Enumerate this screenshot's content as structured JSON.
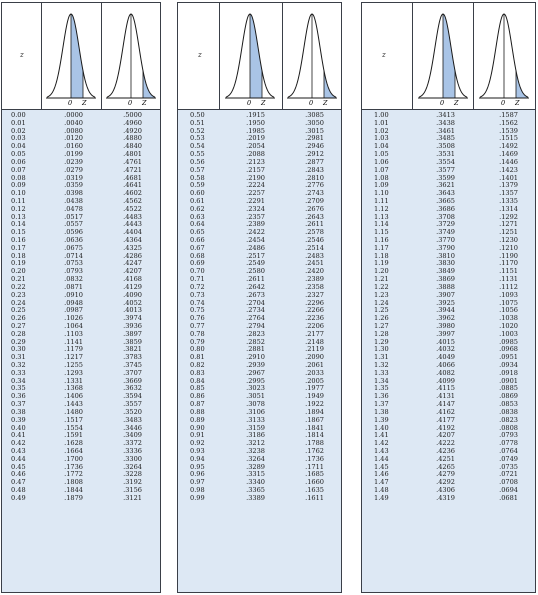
{
  "axis_label": "z",
  "curve_labels": {
    "mean": "0",
    "z": "Z"
  },
  "colors": {
    "shade": "#a9c4e6",
    "rows_background": "#dde8f4",
    "rule": "#3a3f48"
  },
  "panels": [
    {
      "z": [
        "0.00",
        "0.01",
        "0.02",
        "0.03",
        "0.04",
        "0.05",
        "0.06",
        "0.07",
        "0.08",
        "0.09",
        "0.10",
        "0.11",
        "0.12",
        "0.13",
        "0.14",
        "0.15",
        "0.16",
        "0.17",
        "0.18",
        "0.19",
        "0.20",
        "0.21",
        "0.22",
        "0.23",
        "0.24",
        "0.25",
        "0.26",
        "0.27",
        "0.28",
        "0.29",
        "0.30",
        "0.31",
        "0.32",
        "0.33",
        "0.34",
        "0.35",
        "0.36",
        "0.37",
        "0.38",
        "0.39",
        "0.40",
        "0.41",
        "0.42",
        "0.43",
        "0.44",
        "0.45",
        "0.46",
        "0.47",
        "0.48",
        "0.49"
      ],
      "area_0_to_z": [
        ".0000",
        ".0040",
        ".0080",
        ".0120",
        ".0160",
        ".0199",
        ".0239",
        ".0279",
        ".0319",
        ".0359",
        ".0398",
        ".0438",
        ".0478",
        ".0517",
        ".0557",
        ".0596",
        ".0636",
        ".0675",
        ".0714",
        ".0753",
        ".0793",
        ".0832",
        ".0871",
        ".0910",
        ".0948",
        ".0987",
        ".1026",
        ".1064",
        ".1103",
        ".1141",
        ".1179",
        ".1217",
        ".1255",
        ".1293",
        ".1331",
        ".1368",
        ".1406",
        ".1443",
        ".1480",
        ".1517",
        ".1554",
        ".1591",
        ".1628",
        ".1664",
        ".1700",
        ".1736",
        ".1772",
        ".1808",
        ".1844",
        ".1879"
      ],
      "area_beyond_z": [
        ".5000",
        ".4960",
        ".4920",
        ".4880",
        ".4840",
        ".4801",
        ".4761",
        ".4721",
        ".4681",
        ".4641",
        ".4602",
        ".4562",
        ".4522",
        ".4483",
        ".4443",
        ".4404",
        ".4364",
        ".4325",
        ".4286",
        ".4247",
        ".4207",
        ".4168",
        ".4129",
        ".4090",
        ".4052",
        ".4013",
        ".3974",
        ".3936",
        ".3897",
        ".3859",
        ".3821",
        ".3783",
        ".3745",
        ".3707",
        ".3669",
        ".3632",
        ".3594",
        ".3557",
        ".3520",
        ".3483",
        ".3446",
        ".3409",
        ".3372",
        ".3336",
        ".3300",
        ".3264",
        ".3228",
        ".3192",
        ".3156",
        ".3121"
      ]
    },
    {
      "z": [
        "0.50",
        "0.51",
        "0.52",
        "0.53",
        "0.54",
        "0.55",
        "0.56",
        "0.57",
        "0.58",
        "0.59",
        "0.60",
        "0.61",
        "0.62",
        "0.63",
        "0.64",
        "0.65",
        "0.66",
        "0.67",
        "0.68",
        "0.69",
        "0.70",
        "0.71",
        "0.72",
        "0.73",
        "0.74",
        "0.75",
        "0.76",
        "0.77",
        "0.78",
        "0.79",
        "0.80",
        "0.81",
        "0.82",
        "0.83",
        "0.84",
        "0.85",
        "0.86",
        "0.87",
        "0.88",
        "0.89",
        "0.90",
        "0.91",
        "0.92",
        "0.93",
        "0.94",
        "0.95",
        "0.96",
        "0.97",
        "0.98",
        "0.99"
      ],
      "area_0_to_z": [
        ".1915",
        ".1950",
        ".1985",
        ".2019",
        ".2054",
        ".2088",
        ".2123",
        ".2157",
        ".2190",
        ".2224",
        ".2257",
        ".2291",
        ".2324",
        ".2357",
        ".2389",
        ".2422",
        ".2454",
        ".2486",
        ".2517",
        ".2549",
        ".2580",
        ".2611",
        ".2642",
        ".2673",
        ".2704",
        ".2734",
        ".2764",
        ".2794",
        ".2823",
        ".2852",
        ".2881",
        ".2910",
        ".2939",
        ".2967",
        ".2995",
        ".3023",
        ".3051",
        ".3078",
        ".3106",
        ".3133",
        ".3159",
        ".3186",
        ".3212",
        ".3238",
        ".3264",
        ".3289",
        ".3315",
        ".3340",
        ".3365",
        ".3389"
      ],
      "area_beyond_z": [
        ".3085",
        ".3050",
        ".3015",
        ".2981",
        ".2946",
        ".2912",
        ".2877",
        ".2843",
        ".2810",
        ".2776",
        ".2743",
        ".2709",
        ".2676",
        ".2643",
        ".2611",
        ".2578",
        ".2546",
        ".2514",
        ".2483",
        ".2451",
        ".2420",
        ".2389",
        ".2358",
        ".2327",
        ".2296",
        ".2266",
        ".2236",
        ".2206",
        ".2177",
        ".2148",
        ".2119",
        ".2090",
        ".2061",
        ".2033",
        ".2005",
        ".1977",
        ".1949",
        ".1922",
        ".1894",
        ".1867",
        ".1841",
        ".1814",
        ".1788",
        ".1762",
        ".1736",
        ".1711",
        ".1685",
        ".1660",
        ".1635",
        ".1611"
      ]
    },
    {
      "z": [
        "1.00",
        "1.01",
        "1.02",
        "1.03",
        "1.04",
        "1.05",
        "1.06",
        "1.07",
        "1.08",
        "1.09",
        "1.10",
        "1.11",
        "1.12",
        "1.13",
        "1.14",
        "1.15",
        "1.16",
        "1.17",
        "1.18",
        "1.19",
        "1.20",
        "1.21",
        "1.22",
        "1.23",
        "1.24",
        "1.25",
        "1.26",
        "1.27",
        "1.28",
        "1.29",
        "1.30",
        "1.31",
        "1.32",
        "1.33",
        "1.34",
        "1.35",
        "1.36",
        "1.37",
        "1.38",
        "1.39",
        "1.40",
        "1.41",
        "1.42",
        "1.43",
        "1.44",
        "1.45",
        "1.46",
        "1.47",
        "1.48",
        "1.49"
      ],
      "area_0_to_z": [
        ".3413",
        ".3438",
        ".3461",
        ".3485",
        ".3508",
        ".3531",
        ".3554",
        ".3577",
        ".3599",
        ".3621",
        ".3643",
        ".3665",
        ".3686",
        ".3708",
        ".3729",
        ".3749",
        ".3770",
        ".3790",
        ".3810",
        ".3830",
        ".3849",
        ".3869",
        ".3888",
        ".3907",
        ".3925",
        ".3944",
        ".3962",
        ".3980",
        ".3997",
        ".4015",
        ".4032",
        ".4049",
        ".4066",
        ".4082",
        ".4099",
        ".4115",
        ".4131",
        ".4147",
        ".4162",
        ".4177",
        ".4192",
        ".4207",
        ".4222",
        ".4236",
        ".4251",
        ".4265",
        ".4279",
        ".4292",
        ".4306",
        ".4319"
      ],
      "area_beyond_z": [
        ".1587",
        ".1562",
        ".1539",
        ".1515",
        ".1492",
        ".1469",
        ".1446",
        ".1423",
        ".1401",
        ".1379",
        ".1357",
        ".1335",
        ".1314",
        ".1292",
        ".1271",
        ".1251",
        ".1230",
        ".1210",
        ".1190",
        ".1170",
        ".1151",
        ".1131",
        ".1112",
        ".1093",
        ".1075",
        ".1056",
        ".1038",
        ".1020",
        ".1003",
        ".0985",
        ".0968",
        ".0951",
        ".0934",
        ".0918",
        ".0901",
        ".0885",
        ".0869",
        ".0853",
        ".0838",
        ".0823",
        ".0808",
        ".0793",
        ".0778",
        ".0764",
        ".0749",
        ".0735",
        ".0721",
        ".0708",
        ".0694",
        ".0681"
      ]
    }
  ]
}
